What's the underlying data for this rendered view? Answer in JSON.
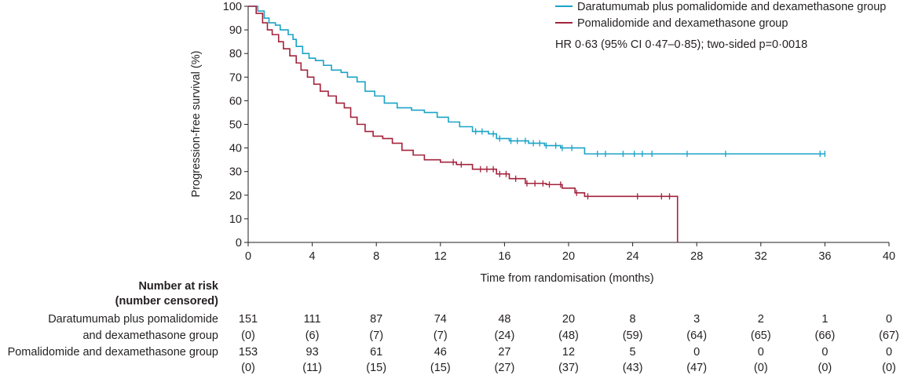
{
  "chart_data": {
    "type": "line",
    "subtype": "kaplan-meier",
    "xlabel": "Time from randomisation (months)",
    "ylabel": "Progression-free survival (%)",
    "xlim": [
      0,
      40
    ],
    "ylim": [
      0,
      100
    ],
    "xticks": [
      "0",
      "4",
      "8",
      "12",
      "16",
      "20",
      "24",
      "28",
      "32",
      "36",
      "40"
    ],
    "yticks": [
      "0",
      "10",
      "20",
      "30",
      "40",
      "50",
      "60",
      "70",
      "80",
      "90",
      "100"
    ],
    "legend_position": "top-right",
    "annotation": "HR 0·63 (95% CI 0·47–0·85); two-sided p=0·0018",
    "series": [
      {
        "name": "Daratumumab plus pomalidomide and dexamethasone group",
        "color": "#1ba3c6",
        "x": [
          0,
          0.6,
          1.0,
          1.3,
          1.7,
          2.0,
          2.5,
          2.8,
          3.0,
          3.4,
          3.8,
          4.2,
          4.7,
          5.2,
          5.8,
          6.2,
          6.8,
          7.3,
          7.9,
          8.5,
          9.3,
          10.2,
          11.0,
          11.8,
          12.5,
          13.2,
          14.0,
          15.0,
          15.5,
          16.3,
          17.5,
          18.5,
          19.5,
          20.5,
          21.0,
          36.0
        ],
        "y": [
          100,
          98,
          95,
          93,
          92,
          90,
          88,
          86,
          83,
          80,
          78,
          77,
          75,
          73,
          72,
          70,
          68,
          64,
          62,
          59,
          57,
          56,
          55,
          53,
          51,
          49,
          47,
          46,
          44,
          43,
          42,
          41,
          40,
          40,
          37.5,
          37.5
        ],
        "censor_x": [
          14.2,
          14.6,
          15.3,
          15.7,
          16.4,
          16.8,
          17.3,
          17.8,
          18.2,
          18.6,
          19.2,
          19.6,
          20.2,
          21.8,
          22.3,
          23.4,
          24.1,
          24.6,
          25.2,
          27.4,
          29.8,
          35.7,
          36.0
        ]
      },
      {
        "name": "Pomalidomide and dexamethasone group",
        "color": "#a3233c",
        "x": [
          0,
          0.5,
          0.9,
          1.2,
          1.5,
          1.9,
          2.2,
          2.6,
          3.0,
          3.3,
          3.7,
          4.1,
          4.5,
          5.0,
          5.5,
          6.0,
          6.4,
          6.8,
          7.3,
          7.8,
          8.4,
          9.0,
          9.6,
          10.3,
          11.0,
          12.0,
          13.0,
          14.0,
          15.5,
          16.3,
          17.3,
          18.6,
          19.6,
          20.4,
          21.0,
          26.8,
          26.8
        ],
        "y": [
          100,
          97,
          93,
          90,
          88,
          85,
          82,
          79,
          76,
          73,
          70,
          67,
          64,
          62,
          59,
          57,
          53,
          50,
          47,
          45,
          44,
          42,
          39,
          37,
          35,
          34,
          33,
          31,
          29,
          27,
          25,
          24.5,
          23,
          21,
          19.5,
          19.5,
          0
        ],
        "censor_x": [
          12.8,
          13.3,
          14.5,
          14.9,
          15.3,
          15.7,
          16.1,
          16.7,
          17.4,
          17.9,
          18.4,
          18.8,
          19.5,
          20.5,
          21.2,
          24.3,
          25.8,
          26.3
        ]
      }
    ],
    "risk_table": {
      "title_line1": "Number at risk",
      "title_line2": "(number censored)",
      "timepoints": [
        0,
        4,
        8,
        12,
        16,
        20,
        24,
        28,
        32,
        36,
        40
      ],
      "rows": [
        {
          "label_line1": "Daratumumab plus pomalidomide",
          "label_line2": "and dexamethasone group",
          "at_risk": [
            "151",
            "111",
            "87",
            "74",
            "48",
            "20",
            "8",
            "3",
            "2",
            "1",
            "0"
          ],
          "censored": [
            "(0)",
            "(6)",
            "(7)",
            "(7)",
            "(24)",
            "(48)",
            "(59)",
            "(64)",
            "(65)",
            "(66)",
            "(67)"
          ]
        },
        {
          "label_line1": "Pomalidomide and dexamethasone group",
          "label_line2": "",
          "at_risk": [
            "153",
            "93",
            "61",
            "46",
            "27",
            "12",
            "5",
            "0",
            "0",
            "0",
            "0"
          ],
          "censored": [
            "(0)",
            "(11)",
            "(15)",
            "(15)",
            "(27)",
            "(37)",
            "(43)",
            "(47)",
            "(0)",
            "(0)",
            "(0)"
          ]
        }
      ]
    }
  }
}
